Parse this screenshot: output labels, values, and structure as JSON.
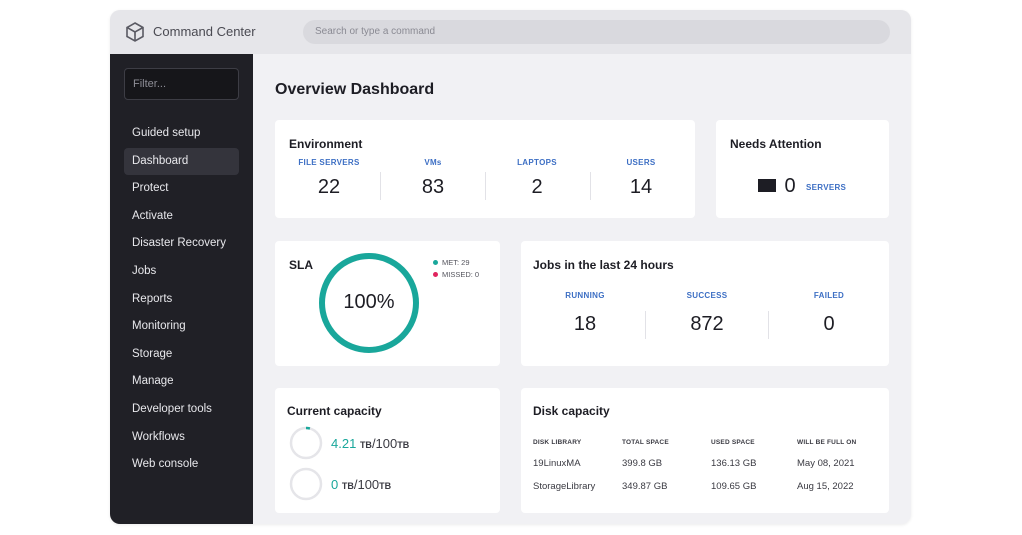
{
  "app": {
    "title": "Command Center",
    "search_placeholder": "Search or type a command"
  },
  "sidebar": {
    "filter_placeholder": "Filter...",
    "items": [
      {
        "label": "Guided setup",
        "active": false
      },
      {
        "label": "Dashboard",
        "active": true
      },
      {
        "label": "Protect",
        "active": false
      },
      {
        "label": "Activate",
        "active": false
      },
      {
        "label": "Disaster Recovery",
        "active": false
      },
      {
        "label": "Jobs",
        "active": false
      },
      {
        "label": "Reports",
        "active": false
      },
      {
        "label": "Monitoring",
        "active": false
      },
      {
        "label": "Storage",
        "active": false
      },
      {
        "label": "Manage",
        "active": false
      },
      {
        "label": "Developer tools",
        "active": false
      },
      {
        "label": "Workflows",
        "active": false
      },
      {
        "label": "Web console",
        "active": false
      }
    ]
  },
  "page": {
    "title": "Overview Dashboard"
  },
  "environment": {
    "title": "Environment",
    "stats": [
      {
        "label": "FILE SERVERS",
        "value": "22"
      },
      {
        "label": "VMs",
        "value": "83"
      },
      {
        "label": "LAPTOPS",
        "value": "2"
      },
      {
        "label": "USERS",
        "value": "14"
      }
    ]
  },
  "attention": {
    "title": "Needs Attention",
    "value": "0",
    "unit": "SERVERS"
  },
  "sla": {
    "title": "SLA",
    "percent_label": "100%",
    "percent": 100,
    "met_label": "MET: 29",
    "missed_label": "MISSED: 0",
    "met_color": "#19a79b",
    "missed_color": "#e0245e"
  },
  "jobs": {
    "title": "Jobs in the last 24 hours",
    "stats": [
      {
        "label": "RUNNING",
        "value": "18"
      },
      {
        "label": "SUCCESS",
        "value": "872"
      },
      {
        "label": "FAILED",
        "value": "0"
      }
    ]
  },
  "capacity": {
    "title": "Current capacity",
    "rows": [
      {
        "used": "4.21",
        "used_unit": "TB",
        "total": "/100",
        "total_unit": "TB",
        "fraction": 0.0421
      },
      {
        "used": "0",
        "used_unit": "TB",
        "total": "/100",
        "total_unit": "TB",
        "fraction": 0
      }
    ]
  },
  "disk": {
    "title": "Disk capacity",
    "headers": [
      "DISK LIBRARY",
      "TOTAL SPACE",
      "USED SPACE",
      "WILL BE FULL ON"
    ],
    "rows": [
      [
        "19LinuxMA",
        "399.8 GB",
        "136.13 GB",
        "May 08, 2021"
      ],
      [
        "StorageLibrary",
        "349.87 GB",
        "109.65 GB",
        "Aug 15, 2022"
      ]
    ]
  },
  "colors": {
    "accent": "#19a79b",
    "label_blue": "#3d6fc4",
    "sidebar_bg": "#202026"
  }
}
